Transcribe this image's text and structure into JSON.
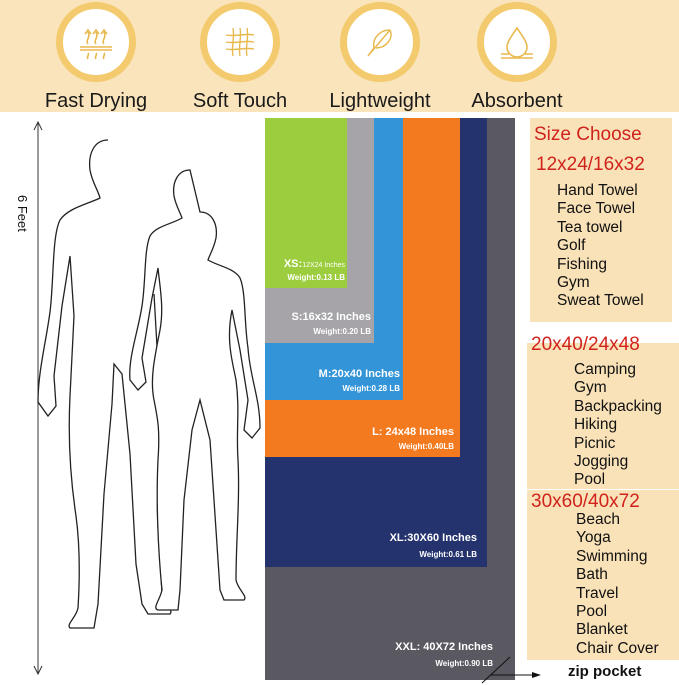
{
  "features": [
    {
      "label": "Fast Drying",
      "icon": "heat-waves-icon"
    },
    {
      "label": "Soft Touch",
      "icon": "mesh-fabric-icon"
    },
    {
      "label": "Lightweight",
      "icon": "feather-icon"
    },
    {
      "label": "Absorbent",
      "icon": "water-drop-icon"
    }
  ],
  "height_label": "6 Feet",
  "towels": [
    {
      "size": "XXL: 40X72 Inches",
      "weight": "Weight:0.90 LB",
      "color": "#5a5860"
    },
    {
      "size": "XL:30X60 Inches",
      "weight": "Weight:0.61 LB",
      "color": "#24336e"
    },
    {
      "size": "L: 24x48 Inches",
      "weight": "Weight:0.40LB",
      "color": "#f47a20"
    },
    {
      "size": "M:20x40 Inches",
      "weight": "Weight:0.28 LB",
      "color": "#3494d8"
    },
    {
      "size": "S:16x32 Inches",
      "weight": "Weight:0.20 LB",
      "color": "#a6a4a8"
    },
    {
      "size_prefix": "XS:",
      "size": "12X24 Inches",
      "weight": "Weight:0.13 LB",
      "color": "#9ccd3e"
    }
  ],
  "zip_pocket": "zip pocket",
  "size_panel": {
    "title": "Size Choose",
    "groups": [
      {
        "heading": "12x24/16x32",
        "uses": [
          "Hand Towel",
          "Face Towel",
          "Tea towel",
          "Golf",
          "Fishing",
          "Gym",
          "Sweat Towel"
        ]
      },
      {
        "heading": "20x40/24x48",
        "uses": [
          "Camping",
          "Gym",
          "Backpacking",
          "Hiking",
          "Picnic",
          "Jogging",
          "Pool"
        ]
      },
      {
        "heading": "30x60/40x72",
        "uses": [
          "Beach",
          "Yoga",
          "Swimming",
          "Bath",
          "Travel",
          "Pool",
          "Blanket",
          "Chair Cover"
        ]
      }
    ]
  },
  "colors": {
    "band": "#f9e4bc",
    "ring": "#f4ca6e",
    "heading": "#d0231c"
  }
}
